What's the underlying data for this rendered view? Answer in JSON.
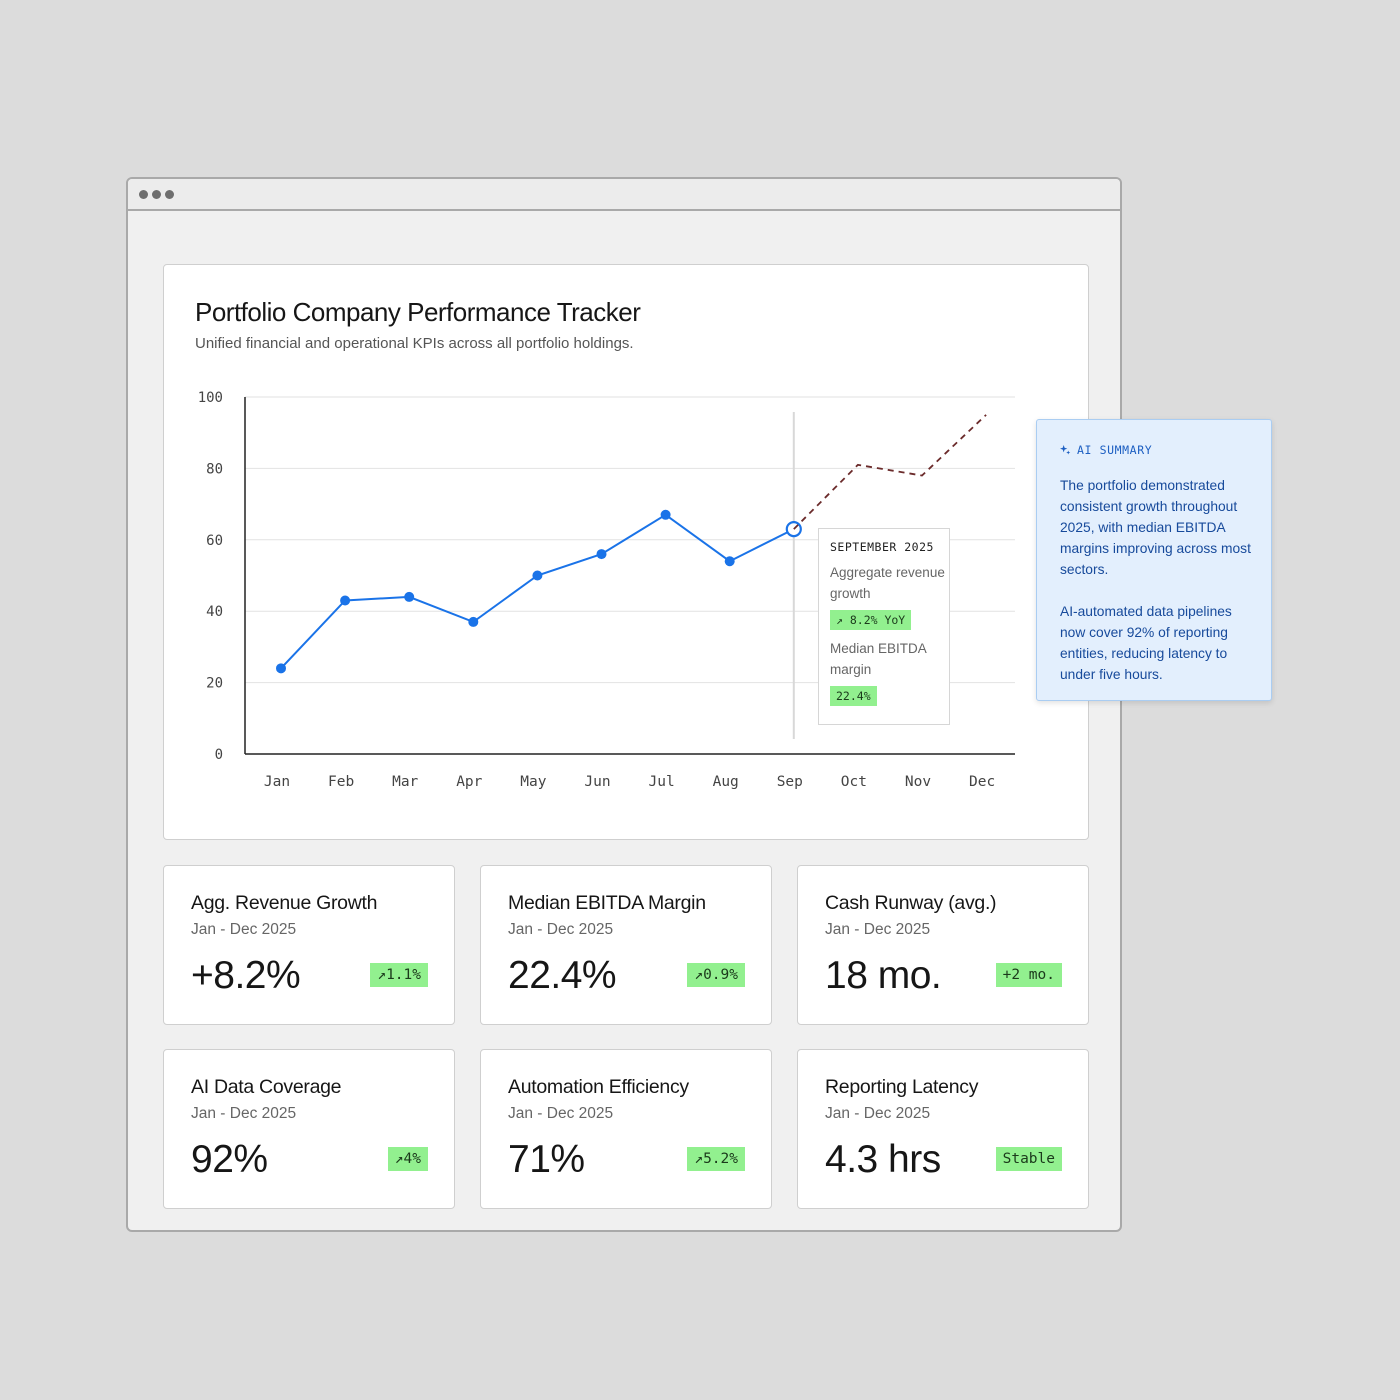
{
  "chart_card": {
    "title": "Portfolio Company Performance Tracker",
    "subtitle": "Unified financial and operational KPIs across all portfolio holdings."
  },
  "chart_data": {
    "type": "line",
    "categories": [
      "Jan",
      "Feb",
      "Mar",
      "Apr",
      "May",
      "Jun",
      "Jul",
      "Aug",
      "Sep",
      "Oct",
      "Nov",
      "Dec"
    ],
    "series": [
      {
        "style": "solid",
        "values": [
          24,
          43,
          44,
          37,
          50,
          56,
          67,
          54,
          63,
          null,
          null,
          null
        ]
      },
      {
        "style": "dashed-forecast",
        "values": [
          null,
          null,
          null,
          null,
          null,
          null,
          null,
          null,
          63,
          81,
          78,
          95
        ]
      }
    ],
    "ylim": [
      0,
      100
    ],
    "yticks": [
      0,
      20,
      40,
      60,
      80,
      100
    ],
    "highlight_index": 8,
    "grid": "horizontal",
    "colors": {
      "line": "#1a73e8",
      "forecast": "#6b2b2b",
      "grid": "#e2e2e2",
      "axis": "#222222"
    }
  },
  "tooltip": {
    "title": "SEPTEMBER 2025",
    "metric1_label": "Aggregate revenue growth",
    "metric1_value": "↗ 8.2% YoY",
    "metric2_label": "Median EBITDA margin",
    "metric2_value": "22.4%"
  },
  "kpis": [
    {
      "title": "Agg. Revenue Growth",
      "period": "Jan - Dec 2025",
      "value": "+8.2%",
      "badge": "↗1.1%"
    },
    {
      "title": "Median EBITDA Margin",
      "period": "Jan - Dec 2025",
      "value": "22.4%",
      "badge": "↗0.9%"
    },
    {
      "title": "Cash Runway (avg.)",
      "period": "Jan - Dec 2025",
      "value": "18 mo.",
      "badge": "+2 mo."
    },
    {
      "title": "AI Data Coverage",
      "period": "Jan - Dec 2025",
      "value": "92%",
      "badge": "↗4%"
    },
    {
      "title": "Automation Efficiency",
      "period": "Jan - Dec 2025",
      "value": "71%",
      "badge": "↗5.2%"
    },
    {
      "title": "Reporting Latency",
      "period": "Jan - Dec 2025",
      "value": "4.3 hrs",
      "badge": "Stable"
    }
  ],
  "ai_summary": {
    "heading": "AI SUMMARY",
    "icon": "sparkle-icon",
    "paragraph1": "The portfolio demonstrated consistent growth throughout 2025, with median EBITDA margins improving across most sectors.",
    "paragraph2": "AI-automated data pipelines now cover 92% of reporting entities, reducing latency to under five hours."
  }
}
